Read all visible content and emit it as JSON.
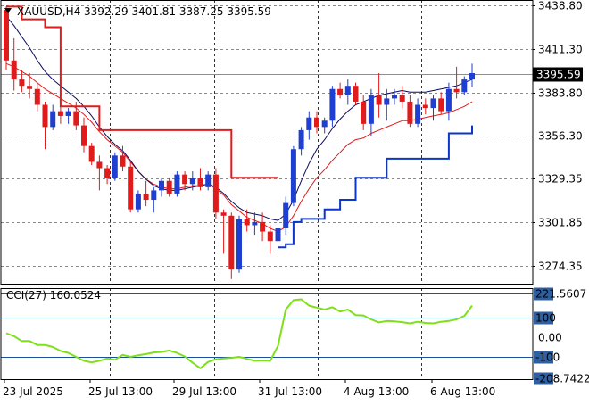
{
  "header": {
    "symbol": "XAUUSD,H4",
    "ohlc": "3392.29 3401.81 3387.25 3395.59",
    "cci_label": "CCI(27) 160.0524"
  },
  "price_axis": {
    "ticks": [
      {
        "value": 3438.8,
        "label": "3438.80"
      },
      {
        "value": 3411.3,
        "label": "3411.30"
      },
      {
        "value": 3383.8,
        "label": "3383.80"
      },
      {
        "value": 3356.3,
        "label": "3356.30"
      },
      {
        "value": 3329.35,
        "label": "3329.35"
      },
      {
        "value": 3301.85,
        "label": "3301.85"
      },
      {
        "value": 3274.35,
        "label": "3274.35"
      }
    ],
    "current": {
      "value": 3395.59,
      "label": "3395.59"
    },
    "range": [
      3264,
      3440
    ]
  },
  "cci_axis": {
    "ticks": [
      {
        "value": 221.5607,
        "label": "221.5607",
        "boxed": true,
        "box_label": "221"
      },
      {
        "value": 100,
        "label": "100",
        "boxed": true
      },
      {
        "value": 0,
        "label": "0.00",
        "boxed": false
      },
      {
        "value": -100,
        "label": "-100",
        "boxed": true
      },
      {
        "value": -208.7422,
        "label": "-208.7422",
        "boxed": true,
        "box_label": "-208"
      }
    ],
    "range": [
      -215,
      230
    ]
  },
  "time_axis": [
    {
      "index": 0,
      "label": "23 Jul 2025"
    },
    {
      "index": 15,
      "label": "25 Jul 13:00"
    },
    {
      "index": 31,
      "label": "29 Jul 13:00"
    },
    {
      "index": 47,
      "label": "31 Jul 13:00"
    },
    {
      "index": 63,
      "label": "4 Aug 13:00"
    },
    {
      "index": 79,
      "label": "6 Aug 13:00"
    }
  ],
  "colors": {
    "bull": "#1f3fd1",
    "bear": "#e01b1b",
    "fast_ma": "#e01b1b",
    "slow_ma": "#0b0b5e",
    "trail_down": "#e01b1b",
    "trail_up": "#0a36c9",
    "cci": "#7fe01a",
    "grid": "#8a8a8a",
    "level": "#1f4f9a",
    "current_line": "#7a90b8"
  },
  "chart_data": [
    {
      "type": "candlestick",
      "title": "XAUUSD,H4",
      "ylim": [
        3264,
        3440
      ],
      "grid": true,
      "candles": [
        [
          3436,
          3438,
          3398,
          3404
        ],
        [
          3404,
          3418,
          3385,
          3392
        ],
        [
          3392,
          3398,
          3384,
          3388
        ],
        [
          3388,
          3396,
          3380,
          3386
        ],
        [
          3386,
          3390,
          3372,
          3376
        ],
        [
          3376,
          3378,
          3348,
          3362
        ],
        [
          3362,
          3376,
          3360,
          3372
        ],
        [
          3372,
          3376,
          3364,
          3369
        ],
        [
          3369,
          3374,
          3364,
          3372
        ],
        [
          3372,
          3378,
          3360,
          3363
        ],
        [
          3363,
          3368,
          3346,
          3350
        ],
        [
          3350,
          3352,
          3338,
          3340
        ],
        [
          3340,
          3344,
          3322,
          3336
        ],
        [
          3336,
          3338,
          3326,
          3330
        ],
        [
          3330,
          3346,
          3328,
          3344
        ],
        [
          3344,
          3350,
          3334,
          3337
        ],
        [
          3337,
          3340,
          3308,
          3310
        ],
        [
          3310,
          3322,
          3308,
          3320
        ],
        [
          3320,
          3328,
          3312,
          3316
        ],
        [
          3316,
          3324,
          3308,
          3322
        ],
        [
          3322,
          3330,
          3318,
          3328
        ],
        [
          3328,
          3330,
          3318,
          3320
        ],
        [
          3320,
          3334,
          3318,
          3332
        ],
        [
          3332,
          3334,
          3322,
          3326
        ],
        [
          3326,
          3334,
          3322,
          3330
        ],
        [
          3330,
          3336,
          3322,
          3324
        ],
        [
          3324,
          3334,
          3322,
          3332
        ],
        [
          3332,
          3336,
          3304,
          3308
        ],
        [
          3308,
          3310,
          3282,
          3306
        ],
        [
          3306,
          3308,
          3266,
          3272
        ],
        [
          3272,
          3306,
          3270,
          3304
        ],
        [
          3304,
          3310,
          3296,
          3300
        ],
        [
          3300,
          3308,
          3294,
          3302
        ],
        [
          3302,
          3308,
          3290,
          3296
        ],
        [
          3296,
          3300,
          3282,
          3290
        ],
        [
          3290,
          3302,
          3284,
          3298
        ],
        [
          3298,
          3318,
          3294,
          3314
        ],
        [
          3314,
          3350,
          3312,
          3348
        ],
        [
          3348,
          3362,
          3344,
          3360
        ],
        [
          3360,
          3372,
          3354,
          3368
        ],
        [
          3368,
          3372,
          3358,
          3362
        ],
        [
          3362,
          3368,
          3358,
          3366
        ],
        [
          3366,
          3388,
          3362,
          3386
        ],
        [
          3386,
          3390,
          3380,
          3382
        ],
        [
          3382,
          3392,
          3376,
          3388
        ],
        [
          3388,
          3390,
          3376,
          3378
        ],
        [
          3378,
          3382,
          3360,
          3364
        ],
        [
          3364,
          3386,
          3356,
          3382
        ],
        [
          3382,
          3396,
          3368,
          3376
        ],
        [
          3376,
          3386,
          3366,
          3380
        ],
        [
          3380,
          3386,
          3376,
          3382
        ],
        [
          3382,
          3388,
          3374,
          3378
        ],
        [
          3378,
          3382,
          3362,
          3364
        ],
        [
          3364,
          3380,
          3362,
          3376
        ],
        [
          3376,
          3380,
          3370,
          3374
        ],
        [
          3374,
          3382,
          3366,
          3380
        ],
        [
          3380,
          3384,
          3370,
          3372
        ],
        [
          3372,
          3390,
          3366,
          3386
        ],
        [
          3386,
          3400,
          3380,
          3384
        ],
        [
          3384,
          3394,
          3382,
          3392
        ],
        [
          3392,
          3402,
          3387,
          3396
        ]
      ],
      "fast_ma": [
        3402,
        3400,
        3397,
        3394,
        3390,
        3386,
        3383,
        3380,
        3377,
        3374,
        3370,
        3365,
        3359,
        3354,
        3350,
        3346,
        3340,
        3334,
        3329,
        3326,
        3324,
        3323,
        3323,
        3324,
        3325,
        3325,
        3326,
        3323,
        3319,
        3313,
        3309,
        3305,
        3303,
        3301,
        3298,
        3296,
        3299,
        3306,
        3315,
        3323,
        3330,
        3335,
        3341,
        3346,
        3351,
        3354,
        3355,
        3358,
        3360,
        3362,
        3364,
        3366,
        3366,
        3367,
        3368,
        3369,
        3370,
        3371,
        3373,
        3375,
        3378
      ],
      "slow_ma": [
        3432,
        3426,
        3419,
        3412,
        3404,
        3397,
        3392,
        3388,
        3384,
        3380,
        3375,
        3369,
        3362,
        3356,
        3351,
        3347,
        3341,
        3334,
        3329,
        3325,
        3323,
        3322,
        3322,
        3323,
        3324,
        3325,
        3326,
        3324,
        3320,
        3315,
        3311,
        3308,
        3307,
        3306,
        3304,
        3303,
        3307,
        3316,
        3328,
        3339,
        3348,
        3354,
        3361,
        3367,
        3372,
        3376,
        3378,
        3380,
        3382,
        3383,
        3384,
        3385,
        3384,
        3384,
        3384,
        3385,
        3386,
        3387,
        3388,
        3390,
        3392
      ],
      "trail_down": [
        3438,
        3438,
        3430,
        3430,
        3430,
        3425,
        3425,
        3375,
        3375,
        3375,
        3375,
        3375,
        3360,
        3360,
        3360,
        3360,
        3360,
        3360,
        3360,
        3360,
        3360,
        3360,
        3360,
        3360,
        3360,
        3360,
        3360,
        3360,
        3360,
        3330,
        3330,
        3330,
        3330,
        3330,
        3330,
        3330,
        null,
        null,
        null,
        null,
        null,
        null,
        null,
        null,
        null,
        null,
        null,
        null,
        null,
        null,
        null,
        null,
        null,
        null,
        null,
        null,
        null,
        null,
        null,
        null,
        null
      ],
      "trail_up": [
        null,
        null,
        null,
        null,
        null,
        null,
        null,
        null,
        null,
        null,
        null,
        null,
        null,
        null,
        null,
        null,
        null,
        null,
        null,
        null,
        null,
        null,
        null,
        null,
        null,
        null,
        null,
        null,
        null,
        null,
        null,
        null,
        null,
        null,
        null,
        3286,
        3288,
        3302,
        3304,
        3304,
        3304,
        3310,
        3310,
        3316,
        3316,
        3330,
        3330,
        3330,
        3330,
        3342,
        3342,
        3342,
        3342,
        3342,
        3342,
        3342,
        3342,
        3358,
        3358,
        3358,
        3363
      ]
    },
    {
      "type": "line",
      "title": "CCI(27) 160.0524",
      "ylim": [
        -215,
        230
      ],
      "levels": [
        100,
        -100
      ],
      "values": [
        20,
        5,
        -20,
        -20,
        -40,
        -40,
        -50,
        -70,
        -80,
        -100,
        -120,
        -128,
        -120,
        -108,
        -115,
        -90,
        -100,
        -92,
        -86,
        -78,
        -75,
        -68,
        -80,
        -98,
        -130,
        -158,
        -126,
        -112,
        -108,
        -105,
        -100,
        -110,
        -120,
        -118,
        -120,
        -45,
        140,
        188,
        192,
        160,
        150,
        140,
        152,
        130,
        140,
        112,
        110,
        90,
        75,
        82,
        80,
        76,
        70,
        78,
        72,
        70,
        78,
        82,
        90,
        108,
        160
      ]
    },
    {
      "type": "extra",
      "trail_up_extra": {
        "index": 61,
        "value": 3363
      }
    }
  ]
}
